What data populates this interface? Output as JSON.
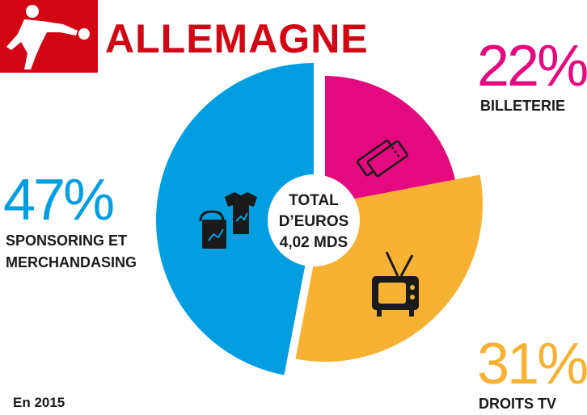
{
  "title": "ALLEMAGNE",
  "logo": {
    "icon": "bundesliga-logo-icon",
    "color": "#d20515"
  },
  "note": "En 2015",
  "center_label": [
    "TOTAL",
    "D’EUROS",
    "4,02 MDS"
  ],
  "chart_data": {
    "type": "pie",
    "title": "",
    "slices": [
      {
        "name": "BILLETERIE",
        "percent_label": "22%",
        "value": 22,
        "color": "#e5097f",
        "icon": "ticket-icon"
      },
      {
        "name": "DROITS TV",
        "percent_label": "31%",
        "value": 31,
        "color": "#f7b234",
        "icon": "tv-icon"
      },
      {
        "name": "SPONSORING ET MERCHANDASING",
        "name_lines": [
          "SPONSORING ET",
          "MERCHANDASING"
        ],
        "percent_label": "47%",
        "value": 47,
        "color": "#009ee0",
        "icon": "merchandise-icon"
      }
    ],
    "legend": "none"
  }
}
